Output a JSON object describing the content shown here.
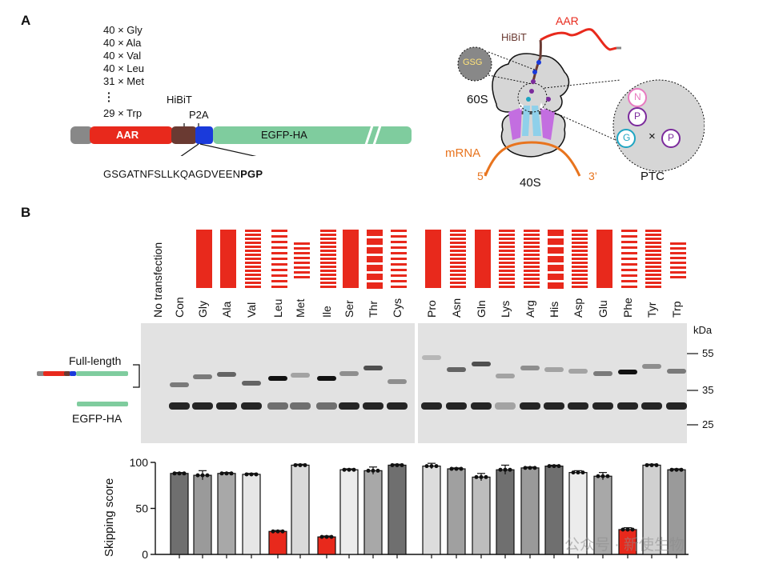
{
  "panel_a": {
    "label": "A",
    "repeats": [
      "40 × Gly",
      "40 × Ala",
      "40 × Val",
      "40 × Leu",
      "31 × Met",
      "29 × Trp"
    ],
    "construct": {
      "aar": "AAR",
      "hibit": "HiBiT",
      "p2a": "P2A",
      "egfp": "EGFP-HA"
    },
    "linker_sequence_plain": "GSGATNFSLLKQAGDVEEN",
    "linker_sequence_bold": "PGP",
    "ribosome": {
      "aar": "AAR",
      "hibit": "HiBiT",
      "gsg": "GSG",
      "large_subunit": "60S",
      "small_subunit": "40S",
      "mrna": "mRNA",
      "five_prime": "5’",
      "three_prime": "3’",
      "ptc": "PTC",
      "n": "N",
      "p": "P",
      "g": "G",
      "times": "×"
    }
  },
  "panel_b": {
    "label": "B",
    "lanes": [
      "No transfection",
      "Con",
      "Gly",
      "Ala",
      "Val",
      "Leu",
      "Met",
      "Ile",
      "Ser",
      "Thr",
      "Cys",
      "Pro",
      "Asn",
      "Gln",
      "Lys",
      "Arg",
      "His",
      "Asp",
      "Glu",
      "Phe",
      "Tyr",
      "Trp"
    ],
    "blot": {
      "kda_title": "kDa",
      "markers": [
        "55",
        "35",
        "25"
      ],
      "full_length_label": "Full-length",
      "egfp_label": "EGFP-HA"
    },
    "colors": {
      "red": "#e8291c",
      "egfp_green": "#7fcc9e",
      "orange": "#e8741e"
    }
  },
  "chart_data": {
    "type": "bar",
    "categories": [
      "Con",
      "Gly",
      "Ala",
      "Val",
      "Leu",
      "Met",
      "Ile",
      "Ser",
      "Thr",
      "Cys",
      "Pro",
      "Asn",
      "Gln",
      "Lys",
      "Arg",
      "His",
      "Asp",
      "Glu",
      "Phe",
      "Tyr",
      "Trp"
    ],
    "values": [
      88,
      86,
      88,
      87,
      25,
      97,
      19,
      92,
      91,
      97,
      96,
      93,
      84,
      92,
      94,
      96,
      89,
      85,
      27,
      97,
      92
    ],
    "errors": [
      1,
      5,
      1,
      1,
      1,
      1,
      1,
      1,
      4,
      1,
      3,
      1,
      4,
      5,
      1,
      1,
      2,
      4,
      2,
      1,
      1
    ],
    "bar_colors": [
      "#6f6f6f",
      "#9a9a9a",
      "#a8a8a8",
      "#e6e6e6",
      "#e8291c",
      "#d9d9d9",
      "#e8291c",
      "#ececec",
      "#a8a8a8",
      "#6f6f6f",
      "#dcdcdc",
      "#a0a0a0",
      "#bdbdbd",
      "#6f6f6f",
      "#9a9a9a",
      "#6f6f6f",
      "#ececec",
      "#a8a8a8",
      "#e8291c",
      "#d0d0d0",
      "#9a9a9a"
    ],
    "ylabel": "Skipping score",
    "ylim": [
      0,
      100
    ],
    "yticks": [
      0,
      50,
      100
    ]
  },
  "watermark": "公众号 · 新使生物"
}
